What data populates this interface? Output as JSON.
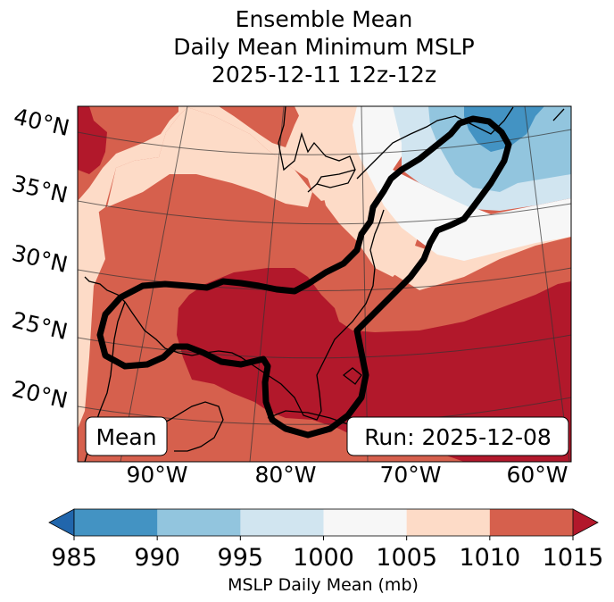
{
  "title": {
    "line1": "Ensemble Mean",
    "line2": "Daily Mean Minimum MSLP",
    "line3": "2025-12-11 12z-12z"
  },
  "map": {
    "lat_labels": [
      "40°N",
      "35°N",
      "30°N",
      "25°N",
      "20°N"
    ],
    "lon_labels": [
      "90°W",
      "80°W",
      "70°W",
      "60°W"
    ],
    "mean_box": "Mean",
    "run_box": "Run: 2025-12-08",
    "colors": {
      "lt985": "#2166ac",
      "985_990": "#4393c3",
      "990_995": "#92c5de",
      "995_1000": "#d1e5f0",
      "1000_1005": "#f7f7f7",
      "1005_1010": "#fddbc7",
      "1010_1015": "#d6604d",
      "gt1015": "#b2182b",
      "contour": "#000000"
    }
  },
  "colorbar": {
    "ticks": [
      "985",
      "990",
      "995",
      "1000",
      "1005",
      "1010",
      "1015"
    ],
    "label": "MSLP Daily Mean (mb)",
    "bins": [
      {
        "from": 985,
        "to": 990,
        "color": "#4393c3"
      },
      {
        "from": 990,
        "to": 995,
        "color": "#92c5de"
      },
      {
        "from": 995,
        "to": 1000,
        "color": "#d1e5f0"
      },
      {
        "from": 1000,
        "to": 1005,
        "color": "#f7f7f7"
      },
      {
        "from": 1005,
        "to": 1010,
        "color": "#fddbc7"
      },
      {
        "from": 1010,
        "to": 1015,
        "color": "#d6604d"
      }
    ],
    "under_color": "#2166ac",
    "over_color": "#b2182b"
  }
}
